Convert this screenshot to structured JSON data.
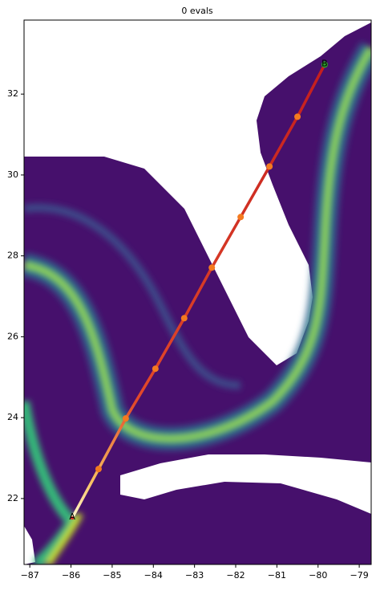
{
  "chart_data": {
    "type": "line",
    "title": "0 evals",
    "x": [
      -85.97,
      -85.33,
      -84.67,
      -83.95,
      -83.25,
      -82.58,
      -81.88,
      -81.18,
      -80.5,
      -79.84
    ],
    "y": [
      21.52,
      22.73,
      23.98,
      25.21,
      26.46,
      27.71,
      28.96,
      30.21,
      31.44,
      32.73
    ],
    "color": "#d42a20",
    "marker_color": "#f47a1f",
    "end_color": "#2ca02c",
    "start_label": "A",
    "end_label": "B",
    "xlim": [
      -87.14,
      -78.71
    ],
    "ylim": [
      20.37,
      33.83
    ],
    "xticks": [
      {
        "value": -87,
        "label": "−87"
      },
      {
        "value": -86,
        "label": "−86"
      },
      {
        "value": -85,
        "label": "−85"
      },
      {
        "value": -84,
        "label": "−84"
      },
      {
        "value": -83,
        "label": "−83"
      },
      {
        "value": -82,
        "label": "−82"
      },
      {
        "value": -81,
        "label": "−81"
      },
      {
        "value": -80,
        "label": "−80"
      },
      {
        "value": -79,
        "label": "−79"
      }
    ],
    "yticks": [
      22,
      24,
      26,
      28,
      30,
      32
    ]
  }
}
